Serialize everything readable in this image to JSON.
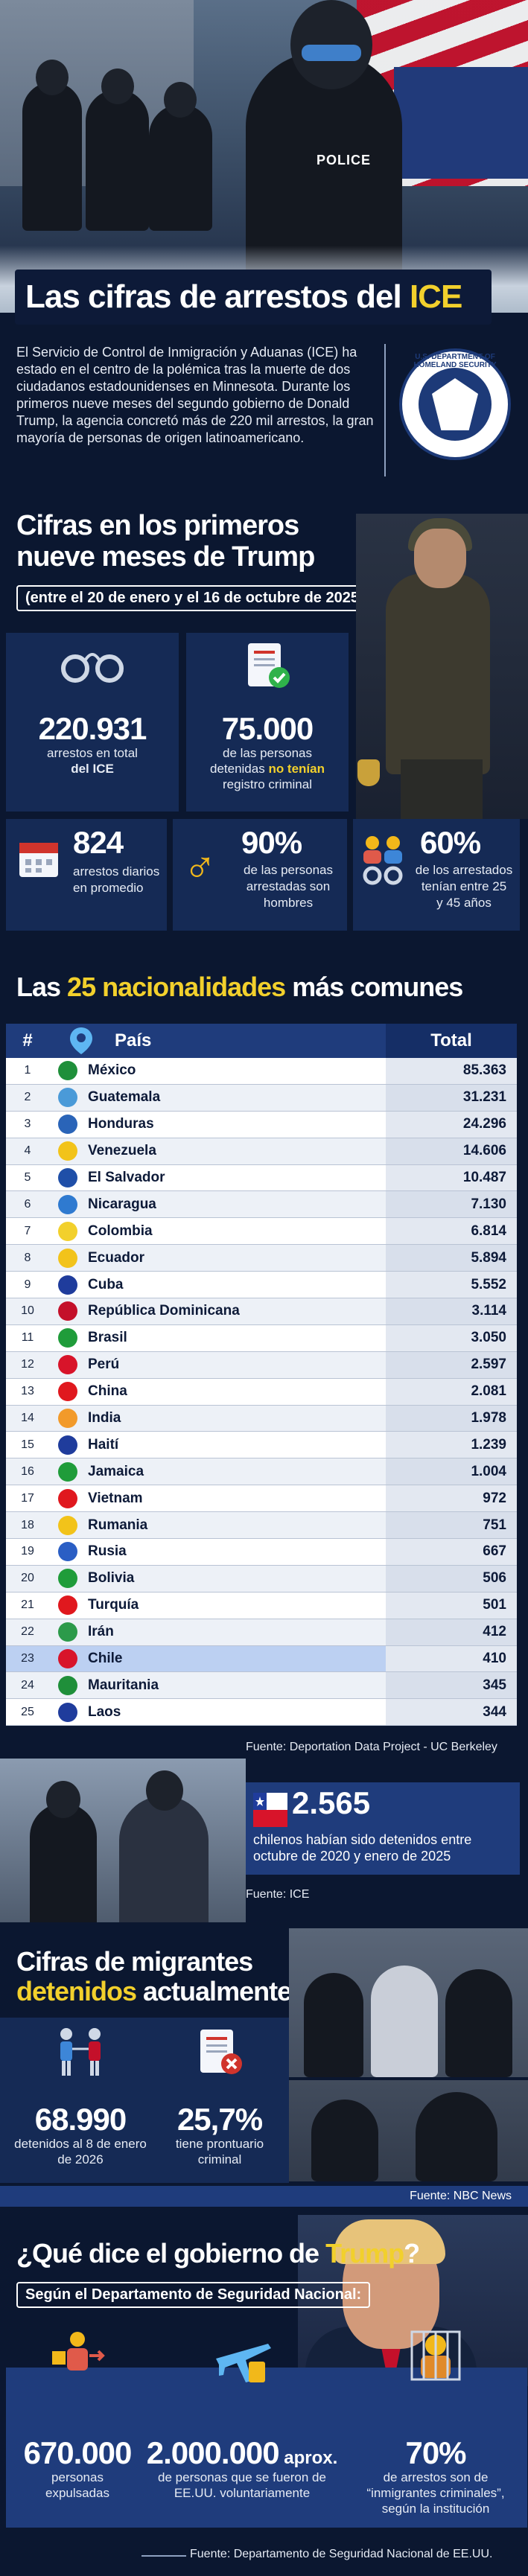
{
  "hero": {
    "title_prefix": "Las cifras de arrestos del ",
    "title_highlight": "ICE",
    "vest_label": "POLICE",
    "intro": "El Servicio de Control de Inmigración y Aduanas (ICE) ha estado en el centro de la polémica tras la muerte de dos ciudadanos estadounidenses en Minnesota. Durante los primeros nueve meses del segundo gobierno de Donald Trump, la agencia concretó más de 220 mil arrestos, la gran mayoría de personas de origen latinoamericano.",
    "seal_text": "U.S. DEPARTMENT OF HOMELAND SECURITY"
  },
  "section1": {
    "title_line1": "Cifras en los primeros",
    "title_line2": "nueve meses de Trump",
    "subtitle": "(entre el 20 de enero y el 16 de octubre de 2025)",
    "stats": {
      "arrests_total": "220.931",
      "arrests_total_label_1": "arrestos en total",
      "arrests_total_label_2": "del ICE",
      "no_record": "75.000",
      "no_record_label_1": "de las personas",
      "no_record_label_2a": "detenidas ",
      "no_record_label_2b": "no tenían",
      "no_record_label_3": "registro criminal",
      "daily": "824",
      "daily_label_1": "arrestos diarios",
      "daily_label_2": "en promedio",
      "men": "90%",
      "men_label_1": "de las personas",
      "men_label_2": "arrestadas son",
      "men_label_3": "hombres",
      "age": "60%",
      "age_label_1": "de los arrestados",
      "age_label_2": "tenían entre 25",
      "age_label_3": "y 45 años"
    }
  },
  "section2": {
    "title_prefix": "Las ",
    "title_highlight": "25 nacionalidades",
    "title_suffix": " más comunes",
    "headers": {
      "num": "#",
      "country": "País",
      "total": "Total"
    },
    "rows": [
      {
        "n": "1",
        "country": "México",
        "total": "85.363",
        "color": "#1f8f3a"
      },
      {
        "n": "2",
        "country": "Guatemala",
        "total": "31.231",
        "color": "#4a9ad8"
      },
      {
        "n": "3",
        "country": "Honduras",
        "total": "24.296",
        "color": "#2a64b8"
      },
      {
        "n": "4",
        "country": "Venezuela",
        "total": "14.606",
        "color": "#f2c31a"
      },
      {
        "n": "5",
        "country": "El Salvador",
        "total": "10.487",
        "color": "#1f4fa8"
      },
      {
        "n": "6",
        "country": "Nicaragua",
        "total": "7.130",
        "color": "#2f7ad0"
      },
      {
        "n": "7",
        "country": "Colombia",
        "total": "6.814",
        "color": "#f2d02c"
      },
      {
        "n": "8",
        "country": "Ecuador",
        "total": "5.894",
        "color": "#f2c31a"
      },
      {
        "n": "9",
        "country": "Cuba",
        "total": "5.552",
        "color": "#1f3c9c"
      },
      {
        "n": "10",
        "country": "República Dominicana",
        "total": "3.114",
        "color": "#c4102a"
      },
      {
        "n": "11",
        "country": "Brasil",
        "total": "3.050",
        "color": "#1f9c3a"
      },
      {
        "n": "12",
        "country": "Perú",
        "total": "2.597",
        "color": "#d8142a"
      },
      {
        "n": "13",
        "country": "China",
        "total": "2.081",
        "color": "#e0181e"
      },
      {
        "n": "14",
        "country": "India",
        "total": "1.978",
        "color": "#f29a2a"
      },
      {
        "n": "15",
        "country": "Haití",
        "total": "1.239",
        "color": "#1f3c9c"
      },
      {
        "n": "16",
        "country": "Jamaica",
        "total": "1.004",
        "color": "#1f9c3a"
      },
      {
        "n": "17",
        "country": "Vietnam",
        "total": "972",
        "color": "#e0181e"
      },
      {
        "n": "18",
        "country": "Rumania",
        "total": "751",
        "color": "#f2c31a"
      },
      {
        "n": "19",
        "country": "Rusia",
        "total": "667",
        "color": "#2a5ec4"
      },
      {
        "n": "20",
        "country": "Bolivia",
        "total": "506",
        "color": "#1f9c3a"
      },
      {
        "n": "21",
        "country": "Turquía",
        "total": "501",
        "color": "#e0181e"
      },
      {
        "n": "22",
        "country": "Irán",
        "total": "412",
        "color": "#2c9a4a"
      },
      {
        "n": "23",
        "country": "Chile",
        "total": "410",
        "color": "#d8142a"
      },
      {
        "n": "24",
        "country": "Mauritania",
        "total": "345",
        "color": "#1f8f3a"
      },
      {
        "n": "25",
        "country": "Laos",
        "total": "344",
        "color": "#1f3c9c"
      }
    ],
    "source": "Fuente: Deportation Data Project - UC Berkeley"
  },
  "chile": {
    "number": "2.565",
    "text": "chilenos habían sido detenidos entre octubre de 2020 y enero de 2025",
    "source": "Fuente: ICE"
  },
  "section3": {
    "title_line1": "Cifras de migrantes",
    "title_line2_highlight": "detenidos",
    "title_line2_suffix": " actualmente",
    "detained": "68.990",
    "detained_label": "detenidos al 8 de enero de 2026",
    "criminal": "25,7%",
    "criminal_label": "tiene prontuario criminal",
    "source": "Fuente: NBC News"
  },
  "section4": {
    "title_prefix": "¿Qué dice el gobierno de ",
    "title_highlight": "Trump",
    "title_suffix": "?",
    "subtitle": "Según el Departamento de Seguridad Nacional:",
    "expelled": "670.000",
    "expelled_label": "personas expulsadas",
    "voluntary": "2.000.000",
    "voluntary_suffix": " aprox.",
    "voluntary_label": "de personas que se fueron de EE.UU. voluntariamente",
    "criminals": "70%",
    "criminals_label": "de arrestos son de “inmigrantes criminales”, según la institución",
    "source": "Fuente: Departamento de Seguridad Nacional de EE.UU."
  },
  "colors": {
    "navy": "#0b1730",
    "panel": "#152a55",
    "accent_blue": "#1f3c7c",
    "highlight_yellow": "#f2d02c"
  }
}
